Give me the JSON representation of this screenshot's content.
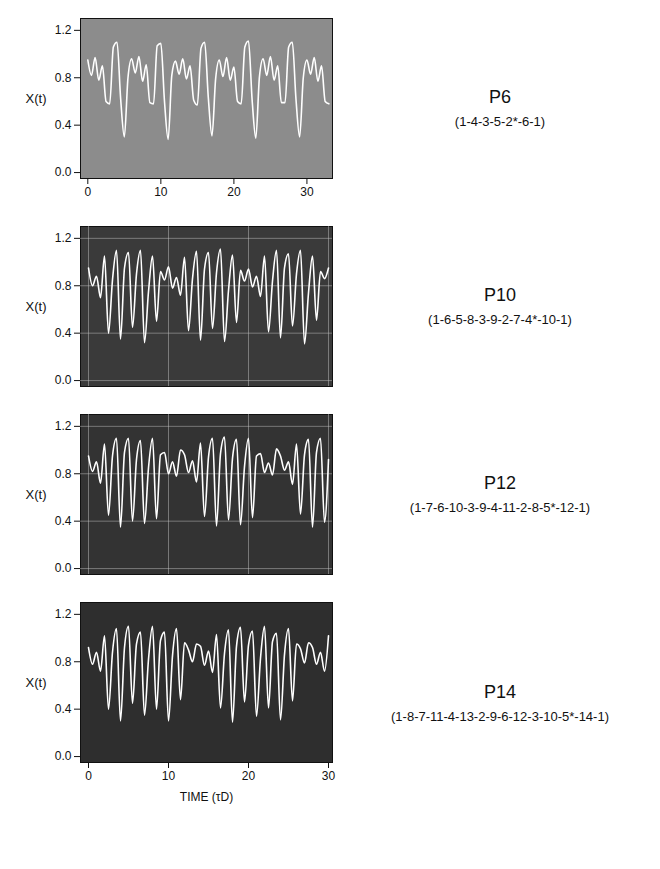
{
  "chart_data": [
    {
      "type": "line",
      "title": "P6",
      "subtitle": "(1-4-3-5-2*-6-1)",
      "y_label": "X(t)",
      "color": "#ffffff",
      "grid": false,
      "xlim": [
        -1,
        33.5
      ],
      "xticks": [
        0,
        10,
        20,
        30
      ],
      "ylim": [
        -0.05,
        1.3
      ],
      "yticks": [
        {
          "value": 0,
          "label": "0.0"
        },
        {
          "value": 0.4,
          "label": "0.4"
        },
        {
          "value": 0.8,
          "label": "0.8"
        },
        {
          "value": 1.2,
          "label": "1.2"
        }
      ],
      "x": [
        0,
        0.5,
        1,
        1.5,
        2,
        2.5,
        3,
        3.5,
        4,
        4.5,
        5,
        5.5,
        6,
        6.5,
        7,
        7.5,
        8,
        8.5,
        9,
        9.5,
        10,
        10.5,
        11,
        11.5,
        12,
        12.5,
        13,
        13.5,
        14,
        14.5,
        15,
        15.5,
        16,
        16.5,
        17,
        17.5,
        18,
        18.5,
        19,
        19.5,
        20,
        20.5,
        21,
        21.5,
        22,
        22.5,
        23,
        23.5,
        24,
        24.5,
        25,
        25.5,
        26,
        26.5,
        27,
        27.5,
        28,
        28.5,
        29,
        29.5,
        30,
        30.5,
        31,
        31.5,
        32,
        32.5,
        33
      ],
      "values": [
        0.95,
        0.82,
        0.97,
        0.78,
        0.9,
        0.6,
        0.58,
        1.06,
        1.1,
        0.62,
        0.3,
        0.8,
        0.96,
        0.84,
        0.98,
        0.77,
        0.91,
        0.59,
        0.58,
        1.07,
        1.09,
        0.6,
        0.28,
        0.82,
        0.94,
        0.83,
        0.96,
        0.79,
        0.9,
        0.61,
        0.57,
        1.05,
        1.1,
        0.63,
        0.31,
        0.79,
        0.95,
        0.81,
        0.97,
        0.78,
        0.89,
        0.6,
        0.58,
        1.06,
        1.11,
        0.61,
        0.29,
        0.81,
        0.96,
        0.82,
        0.98,
        0.78,
        0.9,
        0.59,
        0.59,
        1.06,
        1.1,
        0.62,
        0.3,
        0.8,
        0.95,
        0.83,
        0.97,
        0.77,
        0.9,
        0.6,
        0.58
      ]
    },
    {
      "type": "line",
      "title": "P10",
      "subtitle": "(1-6-5-8-3-9-2-7-4*-10-1)",
      "y_label": "X(t)",
      "color": "#ffffff",
      "grid": true,
      "tick_labels": "y",
      "xlim": [
        -1,
        30.5
      ],
      "xticks": [
        0,
        10,
        20,
        30
      ],
      "ylim": [
        -0.05,
        1.3
      ],
      "yticks": [
        {
          "value": 0,
          "label": "0.0"
        },
        {
          "value": 0.4,
          "label": "0.4"
        },
        {
          "value": 0.8,
          "label": "0.8"
        },
        {
          "value": 1.2,
          "label": "1.2"
        }
      ],
      "x": [
        0,
        0.5,
        1,
        1.5,
        2,
        2.5,
        3,
        3.5,
        4,
        4.5,
        5,
        5.5,
        6,
        6.5,
        7,
        7.5,
        8,
        8.5,
        9,
        9.5,
        10,
        10.5,
        11,
        11.5,
        12,
        12.5,
        13,
        13.5,
        14,
        14.5,
        15,
        15.5,
        16,
        16.5,
        17,
        17.5,
        18,
        18.5,
        19,
        19.5,
        20,
        20.5,
        21,
        21.5,
        22,
        22.5,
        23,
        23.5,
        24,
        24.5,
        25,
        25.5,
        26,
        26.5,
        27,
        27.5,
        28,
        28.5,
        29,
        29.5,
        30
      ],
      "values": [
        0.95,
        0.8,
        0.88,
        0.7,
        1.05,
        0.4,
        0.85,
        1.1,
        0.35,
        0.95,
        1.08,
        0.45,
        0.9,
        1.1,
        0.32,
        0.75,
        1.05,
        0.5,
        0.92,
        0.85,
        0.96,
        0.78,
        0.87,
        0.72,
        1.04,
        0.42,
        0.86,
        1.09,
        0.34,
        0.94,
        1.08,
        0.44,
        0.91,
        1.11,
        0.33,
        0.76,
        1.06,
        0.49,
        0.93,
        0.84,
        0.94,
        0.79,
        0.88,
        0.71,
        1.05,
        0.41,
        0.84,
        1.1,
        0.36,
        0.95,
        1.07,
        0.46,
        0.9,
        1.1,
        0.31,
        0.74,
        1.05,
        0.51,
        0.92,
        0.86,
        0.95
      ]
    },
    {
      "type": "line",
      "title": "P12",
      "subtitle": "(1-7-6-10-3-9-4-11-2-8-5*-12-1)",
      "y_label": "X(t)",
      "color": "#ffffff",
      "grid": true,
      "tick_labels": "y",
      "xlim": [
        -1,
        30.5
      ],
      "xticks": [
        0,
        10,
        20,
        30
      ],
      "ylim": [
        -0.05,
        1.3
      ],
      "yticks": [
        {
          "value": 0,
          "label": "0.0"
        },
        {
          "value": 0.4,
          "label": "0.4"
        },
        {
          "value": 0.8,
          "label": "0.8"
        },
        {
          "value": 1.2,
          "label": "1.2"
        }
      ],
      "x": [
        0,
        0.5,
        1,
        1.5,
        2,
        2.5,
        3,
        3.5,
        4,
        4.5,
        5,
        5.5,
        6,
        6.5,
        7,
        7.5,
        8,
        8.5,
        9,
        9.5,
        10,
        10.5,
        11,
        11.5,
        12,
        12.5,
        13,
        13.5,
        14,
        14.5,
        15,
        15.5,
        16,
        16.5,
        17,
        17.5,
        18,
        18.5,
        19,
        19.5,
        20,
        20.5,
        21,
        21.5,
        22,
        22.5,
        23,
        23.5,
        24,
        24.5,
        25,
        25.5,
        26,
        26.5,
        27,
        27.5,
        28,
        28.5,
        29,
        29.5,
        30
      ],
      "values": [
        0.95,
        0.82,
        0.9,
        0.72,
        1.05,
        0.45,
        0.95,
        1.1,
        0.35,
        0.98,
        1.1,
        0.4,
        0.92,
        1.08,
        0.38,
        0.85,
        1.1,
        0.42,
        0.96,
        0.98,
        0.8,
        0.9,
        0.78,
        1.0,
        0.96,
        0.81,
        0.91,
        0.73,
        1.06,
        0.44,
        0.94,
        1.1,
        0.36,
        0.97,
        1.11,
        0.41,
        0.93,
        1.09,
        0.37,
        0.86,
        1.1,
        0.43,
        0.95,
        0.97,
        0.81,
        0.89,
        0.79,
        1.01,
        0.95,
        0.83,
        0.9,
        0.71,
        1.05,
        0.46,
        0.96,
        1.09,
        0.35,
        0.98,
        1.1,
        0.39,
        0.92
      ]
    },
    {
      "type": "line",
      "title": "P14",
      "subtitle": "(1-8-7-11-4-13-2-9-6-12-3-10-5*-14-1)",
      "y_label": "X(t)",
      "x_label": "TIME (τD)",
      "color": "#ffffff",
      "grid": false,
      "xlim": [
        -1,
        30.5
      ],
      "xticks": [
        0,
        10,
        20,
        30
      ],
      "ylim": [
        -0.05,
        1.3
      ],
      "yticks": [
        {
          "value": 0,
          "label": "0.0"
        },
        {
          "value": 0.4,
          "label": "0.4"
        },
        {
          "value": 0.8,
          "label": "0.8"
        },
        {
          "value": 1.2,
          "label": "1.2"
        }
      ],
      "x": [
        0,
        0.5,
        1,
        1.5,
        2,
        2.5,
        3,
        3.5,
        4,
        4.5,
        5,
        5.5,
        6,
        6.5,
        7,
        7.5,
        8,
        8.5,
        9,
        9.5,
        10,
        10.5,
        11,
        11.5,
        12,
        12.5,
        13,
        13.5,
        14,
        14.5,
        15,
        15.5,
        16,
        16.5,
        17,
        17.5,
        18,
        18.5,
        19,
        19.5,
        20,
        20.5,
        21,
        21.5,
        22,
        22.5,
        23,
        23.5,
        24,
        24.5,
        25,
        25.5,
        26,
        26.5,
        27,
        27.5,
        28,
        28.5,
        29,
        29.5,
        30
      ],
      "values": [
        0.92,
        0.78,
        0.88,
        0.72,
        1.02,
        0.4,
        0.88,
        1.08,
        0.3,
        0.92,
        1.1,
        0.45,
        0.95,
        1.05,
        0.35,
        0.82,
        1.1,
        0.4,
        0.98,
        1.05,
        0.3,
        0.85,
        1.08,
        0.48,
        0.96,
        0.9,
        0.8,
        0.95,
        0.93,
        0.77,
        0.89,
        0.71,
        1.03,
        0.41,
        0.87,
        1.07,
        0.29,
        0.93,
        1.09,
        0.46,
        0.94,
        1.06,
        0.34,
        0.83,
        1.1,
        0.41,
        0.97,
        1.04,
        0.31,
        0.86,
        1.08,
        0.47,
        0.95,
        0.91,
        0.79,
        0.96,
        0.92,
        0.78,
        0.88,
        0.72,
        1.02
      ]
    }
  ]
}
